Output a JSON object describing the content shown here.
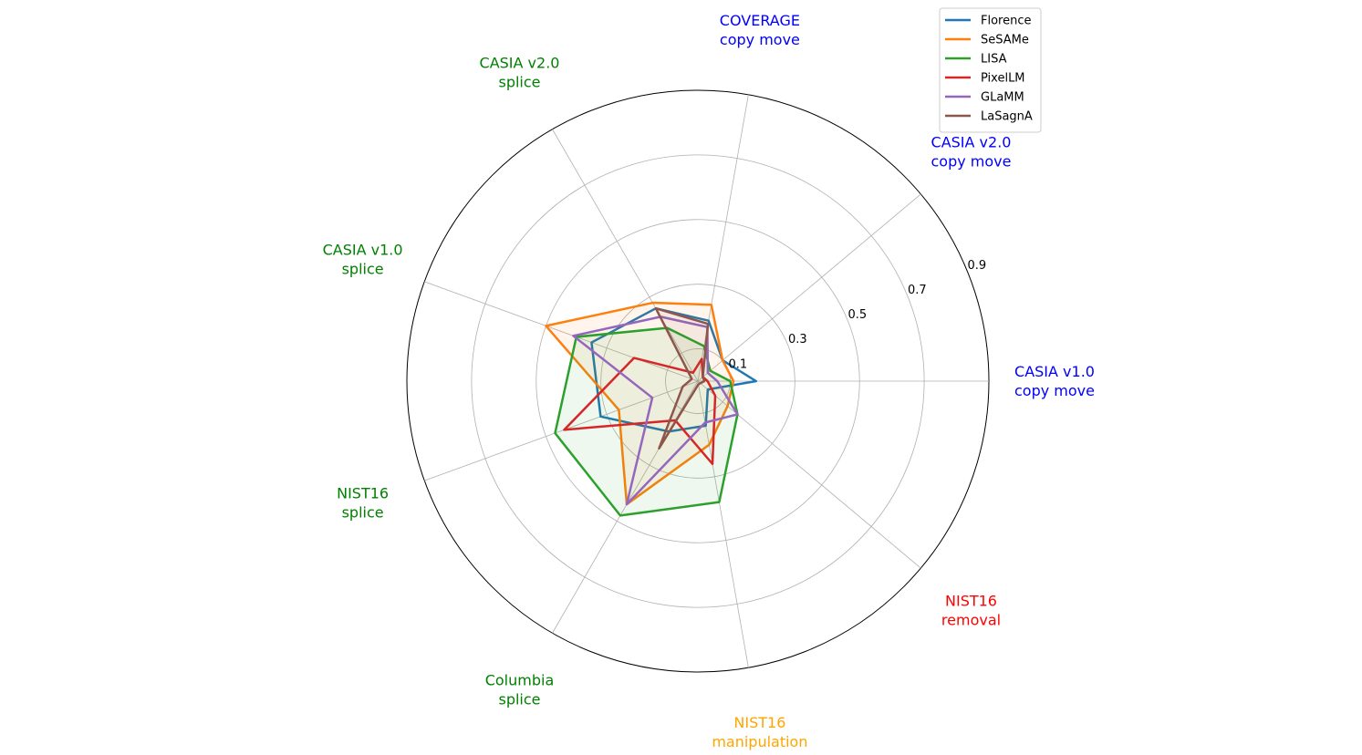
{
  "chart_data": {
    "type": "radar",
    "categories": [
      {
        "lines": [
          "CASIA v1.0",
          "copy move"
        ],
        "color": "#0000ff"
      },
      {
        "lines": [
          "CASIA v2.0",
          "copy move"
        ],
        "color": "#0000ff"
      },
      {
        "lines": [
          "COVERAGE",
          "copy move"
        ],
        "color": "#0000ff"
      },
      {
        "lines": [
          "CASIA v2.0",
          "splice"
        ],
        "color": "#008000"
      },
      {
        "lines": [
          "CASIA v1.0",
          "splice"
        ],
        "color": "#008000"
      },
      {
        "lines": [
          "NIST16",
          "splice"
        ],
        "color": "#008000"
      },
      {
        "lines": [
          "Columbia",
          "splice"
        ],
        "color": "#008000"
      },
      {
        "lines": [
          "NIST16",
          "manipulation"
        ],
        "color": "#ffa500"
      },
      {
        "lines": [
          "NIST16",
          "removal"
        ],
        "color": "#ff0000"
      }
    ],
    "radial_ticks": [
      "0.1",
      "0.3",
      "0.5",
      "0.7",
      "0.9"
    ],
    "radial_tick_values": [
      0.1,
      0.3,
      0.5,
      0.7,
      0.9
    ],
    "rlim": [
      0,
      0.9
    ],
    "grid": true,
    "legend_position": "top-right",
    "series": [
      {
        "name": "Florence",
        "color": "#1f77b4",
        "fill": false,
        "values": [
          0.18,
          0.1,
          0.19,
          0.26,
          0.35,
          0.32,
          0.18,
          0.14,
          0.04
        ]
      },
      {
        "name": "SeSAMe",
        "color": "#ff7f0e",
        "fill": true,
        "values": [
          0.11,
          0.1,
          0.24,
          0.28,
          0.5,
          0.26,
          0.44,
          0.2,
          0.12
        ]
      },
      {
        "name": "LISA",
        "color": "#2ca02c",
        "fill": true,
        "values": [
          0.1,
          0.05,
          0.11,
          0.19,
          0.4,
          0.47,
          0.48,
          0.38,
          0.16
        ]
      },
      {
        "name": "PixelLM",
        "color": "#d62728",
        "fill": false,
        "values": [
          0.03,
          0.02,
          0.07,
          0.03,
          0.21,
          0.44,
          0.14,
          0.26,
          0.07
        ]
      },
      {
        "name": "GLaMM",
        "color": "#9467bd",
        "fill": false,
        "values": [
          0.06,
          0.04,
          0.17,
          0.23,
          0.41,
          0.15,
          0.44,
          0.13,
          0.16
        ]
      },
      {
        "name": "LaSagnA",
        "color": "#8c564b",
        "fill": true,
        "values": [
          0.02,
          0.02,
          0.18,
          0.26,
          0.02,
          0.05,
          0.24,
          0.01,
          0.01
        ]
      }
    ]
  }
}
